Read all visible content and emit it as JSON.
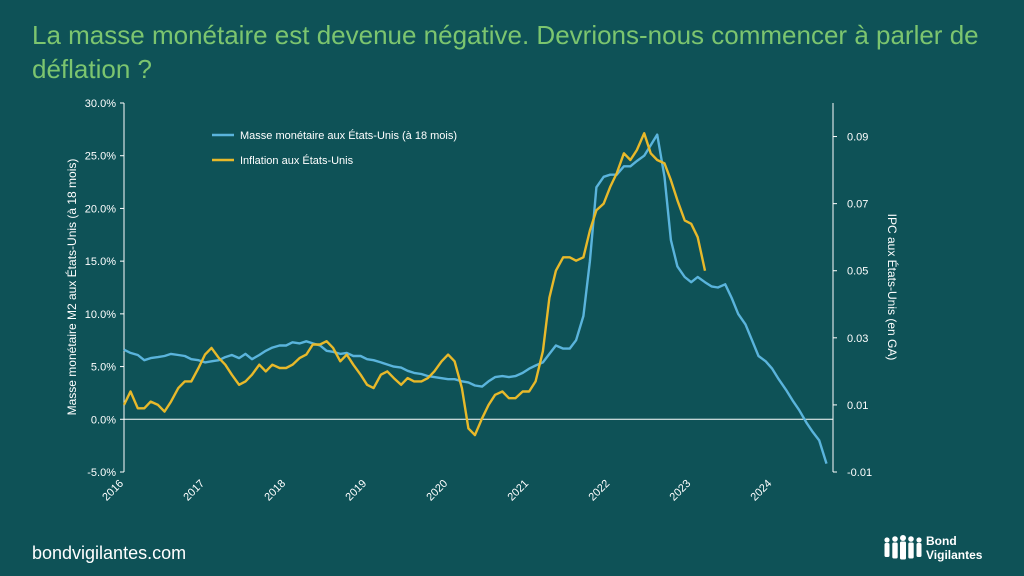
{
  "title": "La masse monétaire est devenue négative. Devrions-nous commencer à parler de déflation ?",
  "footer": {
    "url": "bondvigilantes.com",
    "logo_line1": "Bond",
    "logo_line2": "Vigilantes"
  },
  "colors": {
    "background": "#0e5257",
    "title": "#7cc56f",
    "m2": "#5ab4dc",
    "cpi": "#e8b92a",
    "axis": "#ffffff"
  },
  "chart_data": {
    "type": "line",
    "ylabel_left": "Masse monétaire M2 aux États-Unis (à 18 mois)",
    "ylabel_right": "IPC aux États-Unis (en GA)",
    "y_left_ticks": [
      "-5.0%",
      "0.0%",
      "5.0%",
      "10.0%",
      "15.0%",
      "20.0%",
      "25.0%",
      "30.0%"
    ],
    "y_left_values": [
      -5,
      0,
      5,
      10,
      15,
      20,
      25,
      30
    ],
    "y_left_lim": [
      -5,
      30
    ],
    "y_right_ticks": [
      "-0.01",
      "0.01",
      "0.03",
      "0.05",
      "0.07",
      "0.09"
    ],
    "y_right_values": [
      -0.01,
      0.01,
      0.03,
      0.05,
      0.07,
      0.09
    ],
    "y_right_lim": [
      -0.01,
      0.1
    ],
    "x_ticks": [
      "2016",
      "2017",
      "2018",
      "2019",
      "2020",
      "2021",
      "2022",
      "2023",
      "2024"
    ],
    "x_tick_values": [
      2016,
      2017,
      2018,
      2019,
      2020,
      2021,
      2022,
      2023,
      2024
    ],
    "x_lim": [
      2016,
      2024.75
    ],
    "legend_position": "top-left",
    "series": [
      {
        "name": "Masse monétaire aux États-Unis (à 18 mois)",
        "axis": "left",
        "x": [
          2016.0,
          2016.08,
          2016.17,
          2016.25,
          2016.33,
          2016.42,
          2016.5,
          2016.58,
          2016.67,
          2016.75,
          2016.83,
          2016.92,
          2017.0,
          2017.08,
          2017.17,
          2017.25,
          2017.33,
          2017.42,
          2017.5,
          2017.58,
          2017.67,
          2017.75,
          2017.83,
          2017.92,
          2018.0,
          2018.08,
          2018.17,
          2018.25,
          2018.33,
          2018.42,
          2018.5,
          2018.58,
          2018.67,
          2018.75,
          2018.83,
          2018.92,
          2019.0,
          2019.08,
          2019.17,
          2019.25,
          2019.33,
          2019.42,
          2019.5,
          2019.58,
          2019.67,
          2019.75,
          2019.83,
          2019.92,
          2020.0,
          2020.08,
          2020.17,
          2020.25,
          2020.33,
          2020.42,
          2020.5,
          2020.58,
          2020.67,
          2020.75,
          2020.83,
          2020.92,
          2021.0,
          2021.08,
          2021.17,
          2021.25,
          2021.33,
          2021.42,
          2021.5,
          2021.58,
          2021.67,
          2021.75,
          2021.83,
          2021.92,
          2022.0,
          2022.08,
          2022.17,
          2022.25,
          2022.33,
          2022.42,
          2022.5,
          2022.58,
          2022.67,
          2022.75,
          2022.83,
          2022.92,
          2023.0,
          2023.08,
          2023.17,
          2023.25,
          2023.33,
          2023.42,
          2023.5,
          2023.58,
          2023.67,
          2023.75,
          2023.83,
          2023.92,
          2024.0,
          2024.08,
          2024.17,
          2024.25,
          2024.33,
          2024.42,
          2024.5,
          2024.58,
          2024.67
        ],
        "values": [
          6.6,
          6.3,
          6.1,
          5.6,
          5.8,
          5.9,
          6.0,
          6.2,
          6.1,
          6.0,
          5.7,
          5.6,
          5.4,
          5.5,
          5.6,
          5.9,
          6.1,
          5.8,
          6.2,
          5.7,
          6.1,
          6.5,
          6.8,
          7.0,
          7.0,
          7.3,
          7.2,
          7.4,
          7.2,
          7.0,
          6.5,
          6.4,
          6.2,
          6.3,
          6.0,
          6.0,
          5.7,
          5.6,
          5.4,
          5.2,
          5.0,
          4.9,
          4.6,
          4.4,
          4.3,
          4.1,
          4.0,
          3.9,
          3.8,
          3.8,
          3.6,
          3.5,
          3.2,
          3.1,
          3.6,
          4.0,
          4.1,
          4.0,
          4.1,
          4.4,
          4.8,
          5.1,
          5.4,
          6.2,
          7.0,
          6.7,
          6.7,
          7.5,
          9.8,
          15.0,
          22.0,
          23.0,
          23.2,
          23.2,
          24.0,
          24.0,
          24.5,
          25.0,
          26.0,
          27.0,
          23.0,
          17.0,
          14.5,
          13.5,
          13.0,
          13.5,
          13.0,
          12.6,
          12.5,
          12.8,
          11.5,
          10.0,
          9.0,
          7.5,
          6.0,
          5.5,
          4.8,
          3.8,
          2.8,
          1.8,
          0.9,
          -0.3,
          -1.2,
          -2.0,
          -4.2
        ]
      },
      {
        "name": "Inflation aux États-Unis",
        "axis": "right",
        "x": [
          2016.0,
          2016.08,
          2016.17,
          2016.25,
          2016.33,
          2016.42,
          2016.5,
          2016.58,
          2016.67,
          2016.75,
          2016.83,
          2016.92,
          2017.0,
          2017.08,
          2017.17,
          2017.25,
          2017.33,
          2017.42,
          2017.5,
          2017.58,
          2017.67,
          2017.75,
          2017.83,
          2017.92,
          2018.0,
          2018.08,
          2018.17,
          2018.25,
          2018.33,
          2018.42,
          2018.5,
          2018.58,
          2018.67,
          2018.75,
          2018.83,
          2018.92,
          2019.0,
          2019.08,
          2019.17,
          2019.25,
          2019.33,
          2019.42,
          2019.5,
          2019.58,
          2019.67,
          2019.75,
          2019.83,
          2019.92,
          2020.0,
          2020.08,
          2020.17,
          2020.25,
          2020.33,
          2020.42,
          2020.5,
          2020.58,
          2020.67,
          2020.75,
          2020.83,
          2020.92,
          2021.0,
          2021.08,
          2021.17,
          2021.25,
          2021.33,
          2021.42,
          2021.5,
          2021.58,
          2021.67,
          2021.75,
          2021.83,
          2021.92,
          2022.0,
          2022.08,
          2022.17,
          2022.25,
          2022.33,
          2022.42,
          2022.5,
          2022.58,
          2022.67,
          2022.75,
          2022.83,
          2022.92,
          2023.0,
          2023.08,
          2023.17
        ],
        "values": [
          0.01,
          0.014,
          0.009,
          0.009,
          0.011,
          0.01,
          0.008,
          0.011,
          0.015,
          0.017,
          0.017,
          0.021,
          0.025,
          0.027,
          0.024,
          0.022,
          0.019,
          0.016,
          0.017,
          0.019,
          0.022,
          0.02,
          0.022,
          0.021,
          0.021,
          0.022,
          0.024,
          0.025,
          0.028,
          0.028,
          0.029,
          0.027,
          0.023,
          0.025,
          0.022,
          0.019,
          0.016,
          0.015,
          0.019,
          0.02,
          0.018,
          0.016,
          0.018,
          0.017,
          0.017,
          0.018,
          0.02,
          0.023,
          0.025,
          0.023,
          0.015,
          0.003,
          0.001,
          0.006,
          0.01,
          0.013,
          0.014,
          0.012,
          0.012,
          0.014,
          0.014,
          0.017,
          0.026,
          0.042,
          0.05,
          0.054,
          0.054,
          0.053,
          0.054,
          0.062,
          0.068,
          0.07,
          0.075,
          0.079,
          0.085,
          0.083,
          0.086,
          0.091,
          0.085,
          0.083,
          0.082,
          0.077,
          0.071,
          0.065,
          0.064,
          0.06,
          0.05
        ]
      }
    ]
  }
}
